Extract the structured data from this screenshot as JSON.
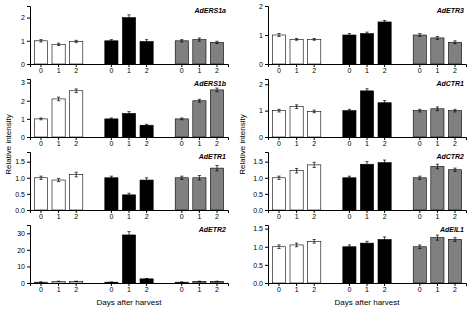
{
  "chart_data": [
    {
      "type": "bar",
      "title": "AdERS1a",
      "y_label": "Relative intensity",
      "categories": [
        "0",
        "1",
        "2",
        "0",
        "1",
        "2",
        "0",
        "1",
        "2"
      ],
      "values": [
        1.0,
        0.85,
        0.97,
        1.0,
        2.0,
        0.97,
        1.0,
        1.05,
        0.93
      ],
      "errors": [
        0.05,
        0.05,
        0.05,
        0.05,
        0.12,
        0.08,
        0.05,
        0.07,
        0.05
      ],
      "colors": [
        "white",
        "white",
        "white",
        "black",
        "black",
        "black",
        "#808080",
        "#808080",
        "#808080"
      ],
      "ylim": [
        0,
        2.5
      ],
      "yticks": [
        0,
        1,
        2
      ]
    },
    {
      "type": "bar",
      "title": "AdERS1b",
      "categories": [
        "0",
        "1",
        "2",
        "0",
        "1",
        "2",
        "0",
        "1",
        "2"
      ],
      "values": [
        1.0,
        2.1,
        2.55,
        1.0,
        1.3,
        0.65,
        1.0,
        2.0,
        2.6
      ],
      "errors": [
        0.05,
        0.1,
        0.1,
        0.05,
        0.1,
        0.05,
        0.05,
        0.08,
        0.1
      ],
      "colors": [
        "white",
        "white",
        "white",
        "black",
        "black",
        "black",
        "#808080",
        "#808080",
        "#808080"
      ],
      "ylim": [
        0,
        3.2
      ],
      "yticks": [
        0,
        1,
        2,
        3
      ]
    },
    {
      "type": "bar",
      "title": "AdETR1",
      "categories": [
        "0",
        "1",
        "2",
        "0",
        "1",
        "2",
        "0",
        "1",
        "2"
      ],
      "values": [
        1.0,
        0.93,
        1.1,
        1.0,
        0.47,
        0.93,
        1.0,
        1.0,
        1.3
      ],
      "errors": [
        0.05,
        0.05,
        0.07,
        0.05,
        0.05,
        0.07,
        0.05,
        0.07,
        0.08
      ],
      "colors": [
        "white",
        "white",
        "white",
        "black",
        "black",
        "black",
        "#808080",
        "#808080",
        "#808080"
      ],
      "ylim": [
        0,
        1.8
      ],
      "yticks": [
        {
          "value": 0.0,
          "label": "0.0"
        },
        0.5,
        {
          "value": 1.0,
          "label": "1.0"
        },
        1.5
      ]
    },
    {
      "type": "bar",
      "title": "AdETR2",
      "x_label": "Days after harvest",
      "categories": [
        "0",
        "1",
        "2",
        "0",
        "1",
        "2",
        "0",
        "1",
        "2"
      ],
      "values": [
        0.5,
        1.0,
        1.0,
        0.5,
        29.0,
        2.5,
        0.5,
        1.0,
        1.0
      ],
      "errors": [
        0.1,
        0.1,
        0.1,
        0.1,
        2.0,
        0.2,
        0.1,
        0.1,
        0.1
      ],
      "colors": [
        "white",
        "white",
        "white",
        "black",
        "black",
        "black",
        "#808080",
        "#808080",
        "#808080"
      ],
      "ylim": [
        0,
        35
      ],
      "yticks": [
        0,
        10,
        20,
        30
      ]
    },
    {
      "type": "bar",
      "title": "AdETR3",
      "y_label": "Relative intensity",
      "categories": [
        "0",
        "1",
        "2",
        "0",
        "1",
        "2",
        "0",
        "1",
        "2"
      ],
      "values": [
        1.0,
        0.85,
        0.85,
        1.0,
        1.05,
        1.45,
        1.0,
        0.9,
        0.75
      ],
      "errors": [
        0.05,
        0.03,
        0.03,
        0.05,
        0.05,
        0.05,
        0.05,
        0.05,
        0.05
      ],
      "colors": [
        "white",
        "white",
        "white",
        "black",
        "black",
        "black",
        "#808080",
        "#808080",
        "#808080"
      ],
      "ylim": [
        0,
        2.0
      ],
      "yticks": [
        0,
        1,
        2
      ]
    },
    {
      "type": "bar",
      "title": "AdCTR1",
      "categories": [
        "0",
        "1",
        "2",
        "0",
        "1",
        "2",
        "0",
        "1",
        "2"
      ],
      "values": [
        1.0,
        1.15,
        0.97,
        1.0,
        1.75,
        1.3,
        1.0,
        1.07,
        1.0
      ],
      "errors": [
        0.05,
        0.07,
        0.05,
        0.05,
        0.08,
        0.08,
        0.05,
        0.07,
        0.05
      ],
      "colors": [
        "white",
        "white",
        "white",
        "black",
        "black",
        "black",
        "#808080",
        "#808080",
        "#808080"
      ],
      "ylim": [
        0,
        2.2
      ],
      "yticks": [
        0,
        1,
        2
      ]
    },
    {
      "type": "bar",
      "title": "AdCTR2",
      "categories": [
        "0",
        "1",
        "2",
        "0",
        "1",
        "2",
        "0",
        "1",
        "2"
      ],
      "values": [
        1.0,
        1.22,
        1.4,
        1.0,
        1.42,
        1.47,
        1.0,
        1.35,
        1.25
      ],
      "errors": [
        0.05,
        0.07,
        0.08,
        0.05,
        0.08,
        0.08,
        0.05,
        0.07,
        0.05
      ],
      "colors": [
        "white",
        "white",
        "white",
        "black",
        "black",
        "black",
        "#808080",
        "#808080",
        "#808080"
      ],
      "ylim": [
        0,
        1.8
      ],
      "yticks": [
        {
          "value": 0.0,
          "label": "0.0"
        },
        0.5,
        {
          "value": 1.0,
          "label": "1.0"
        },
        1.5
      ]
    },
    {
      "type": "bar",
      "title": "AdEIL1",
      "x_label": "Days after harvest",
      "categories": [
        "0",
        "1",
        "2",
        "0",
        "1",
        "2",
        "0",
        "1",
        "2"
      ],
      "values": [
        1.0,
        1.05,
        1.15,
        1.0,
        1.1,
        1.2,
        1.0,
        1.25,
        1.2
      ],
      "errors": [
        0.05,
        0.05,
        0.05,
        0.05,
        0.05,
        0.07,
        0.05,
        0.07,
        0.05
      ],
      "colors": [
        "white",
        "white",
        "white",
        "black",
        "black",
        "black",
        "#808080",
        "#808080",
        "#808080"
      ],
      "ylim": [
        0,
        1.6
      ],
      "yticks": [
        {
          "value": 0.0,
          "label": "0.0"
        },
        0.5,
        {
          "value": 1.0,
          "label": "1.0"
        },
        1.5
      ]
    }
  ]
}
